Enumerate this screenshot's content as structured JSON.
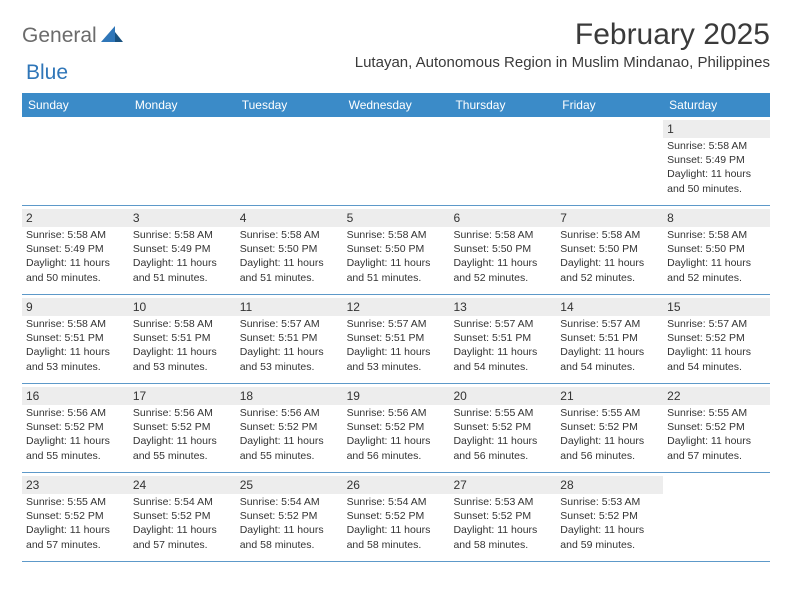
{
  "logo": {
    "text1": "General",
    "text2": "Blue"
  },
  "title": "February 2025",
  "location": "Lutayan, Autonomous Region in Muslim Mindanao, Philippines",
  "colors": {
    "header_bg": "#3b8bc8",
    "header_text": "#ffffff",
    "daynum_bg": "#ededed",
    "border": "#5d99c9",
    "logo_gray": "#6b6b6b",
    "logo_blue": "#2f76b8",
    "body_text": "#333333"
  },
  "weekdays": [
    "Sunday",
    "Monday",
    "Tuesday",
    "Wednesday",
    "Thursday",
    "Friday",
    "Saturday"
  ],
  "weeks": [
    [
      {
        "empty": true
      },
      {
        "empty": true
      },
      {
        "empty": true
      },
      {
        "empty": true
      },
      {
        "empty": true
      },
      {
        "empty": true
      },
      {
        "num": "1",
        "sunrise": "Sunrise: 5:58 AM",
        "sunset": "Sunset: 5:49 PM",
        "daylight": "Daylight: 11 hours and 50 minutes."
      }
    ],
    [
      {
        "num": "2",
        "sunrise": "Sunrise: 5:58 AM",
        "sunset": "Sunset: 5:49 PM",
        "daylight": "Daylight: 11 hours and 50 minutes."
      },
      {
        "num": "3",
        "sunrise": "Sunrise: 5:58 AM",
        "sunset": "Sunset: 5:49 PM",
        "daylight": "Daylight: 11 hours and 51 minutes."
      },
      {
        "num": "4",
        "sunrise": "Sunrise: 5:58 AM",
        "sunset": "Sunset: 5:50 PM",
        "daylight": "Daylight: 11 hours and 51 minutes."
      },
      {
        "num": "5",
        "sunrise": "Sunrise: 5:58 AM",
        "sunset": "Sunset: 5:50 PM",
        "daylight": "Daylight: 11 hours and 51 minutes."
      },
      {
        "num": "6",
        "sunrise": "Sunrise: 5:58 AM",
        "sunset": "Sunset: 5:50 PM",
        "daylight": "Daylight: 11 hours and 52 minutes."
      },
      {
        "num": "7",
        "sunrise": "Sunrise: 5:58 AM",
        "sunset": "Sunset: 5:50 PM",
        "daylight": "Daylight: 11 hours and 52 minutes."
      },
      {
        "num": "8",
        "sunrise": "Sunrise: 5:58 AM",
        "sunset": "Sunset: 5:50 PM",
        "daylight": "Daylight: 11 hours and 52 minutes."
      }
    ],
    [
      {
        "num": "9",
        "sunrise": "Sunrise: 5:58 AM",
        "sunset": "Sunset: 5:51 PM",
        "daylight": "Daylight: 11 hours and 53 minutes."
      },
      {
        "num": "10",
        "sunrise": "Sunrise: 5:58 AM",
        "sunset": "Sunset: 5:51 PM",
        "daylight": "Daylight: 11 hours and 53 minutes."
      },
      {
        "num": "11",
        "sunrise": "Sunrise: 5:57 AM",
        "sunset": "Sunset: 5:51 PM",
        "daylight": "Daylight: 11 hours and 53 minutes."
      },
      {
        "num": "12",
        "sunrise": "Sunrise: 5:57 AM",
        "sunset": "Sunset: 5:51 PM",
        "daylight": "Daylight: 11 hours and 53 minutes."
      },
      {
        "num": "13",
        "sunrise": "Sunrise: 5:57 AM",
        "sunset": "Sunset: 5:51 PM",
        "daylight": "Daylight: 11 hours and 54 minutes."
      },
      {
        "num": "14",
        "sunrise": "Sunrise: 5:57 AM",
        "sunset": "Sunset: 5:51 PM",
        "daylight": "Daylight: 11 hours and 54 minutes."
      },
      {
        "num": "15",
        "sunrise": "Sunrise: 5:57 AM",
        "sunset": "Sunset: 5:52 PM",
        "daylight": "Daylight: 11 hours and 54 minutes."
      }
    ],
    [
      {
        "num": "16",
        "sunrise": "Sunrise: 5:56 AM",
        "sunset": "Sunset: 5:52 PM",
        "daylight": "Daylight: 11 hours and 55 minutes."
      },
      {
        "num": "17",
        "sunrise": "Sunrise: 5:56 AM",
        "sunset": "Sunset: 5:52 PM",
        "daylight": "Daylight: 11 hours and 55 minutes."
      },
      {
        "num": "18",
        "sunrise": "Sunrise: 5:56 AM",
        "sunset": "Sunset: 5:52 PM",
        "daylight": "Daylight: 11 hours and 55 minutes."
      },
      {
        "num": "19",
        "sunrise": "Sunrise: 5:56 AM",
        "sunset": "Sunset: 5:52 PM",
        "daylight": "Daylight: 11 hours and 56 minutes."
      },
      {
        "num": "20",
        "sunrise": "Sunrise: 5:55 AM",
        "sunset": "Sunset: 5:52 PM",
        "daylight": "Daylight: 11 hours and 56 minutes."
      },
      {
        "num": "21",
        "sunrise": "Sunrise: 5:55 AM",
        "sunset": "Sunset: 5:52 PM",
        "daylight": "Daylight: 11 hours and 56 minutes."
      },
      {
        "num": "22",
        "sunrise": "Sunrise: 5:55 AM",
        "sunset": "Sunset: 5:52 PM",
        "daylight": "Daylight: 11 hours and 57 minutes."
      }
    ],
    [
      {
        "num": "23",
        "sunrise": "Sunrise: 5:55 AM",
        "sunset": "Sunset: 5:52 PM",
        "daylight": "Daylight: 11 hours and 57 minutes."
      },
      {
        "num": "24",
        "sunrise": "Sunrise: 5:54 AM",
        "sunset": "Sunset: 5:52 PM",
        "daylight": "Daylight: 11 hours and 57 minutes."
      },
      {
        "num": "25",
        "sunrise": "Sunrise: 5:54 AM",
        "sunset": "Sunset: 5:52 PM",
        "daylight": "Daylight: 11 hours and 58 minutes."
      },
      {
        "num": "26",
        "sunrise": "Sunrise: 5:54 AM",
        "sunset": "Sunset: 5:52 PM",
        "daylight": "Daylight: 11 hours and 58 minutes."
      },
      {
        "num": "27",
        "sunrise": "Sunrise: 5:53 AM",
        "sunset": "Sunset: 5:52 PM",
        "daylight": "Daylight: 11 hours and 58 minutes."
      },
      {
        "num": "28",
        "sunrise": "Sunrise: 5:53 AM",
        "sunset": "Sunset: 5:52 PM",
        "daylight": "Daylight: 11 hours and 59 minutes."
      },
      {
        "empty": true
      }
    ]
  ]
}
